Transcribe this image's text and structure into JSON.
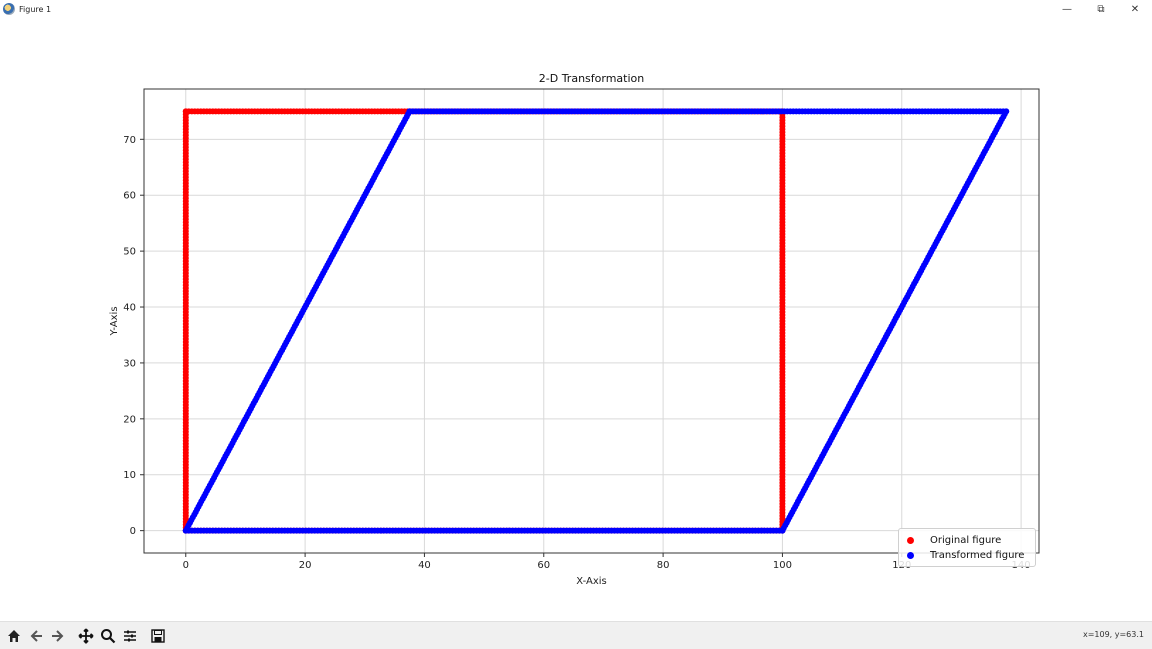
{
  "window": {
    "title": "Figure 1",
    "minimize_glyph": "—",
    "restore_glyph": "⧉",
    "close_glyph": "✕"
  },
  "toolbar": {
    "buttons": [
      {
        "name": "home-icon"
      },
      {
        "name": "back-icon"
      },
      {
        "name": "forward-icon"
      },
      {
        "name": "pan-icon"
      },
      {
        "name": "zoom-icon"
      },
      {
        "name": "subplots-icon"
      },
      {
        "name": "save-icon"
      }
    ],
    "coords_text": "x=109, y=63.1"
  },
  "chart_data": {
    "type": "scatter",
    "title": "2-D Transformation",
    "xlabel": "X-Axis",
    "ylabel": "Y-Axis",
    "xlim": [
      -7,
      143
    ],
    "ylim": [
      -4,
      79
    ],
    "xticks": [
      0,
      20,
      40,
      60,
      80,
      100,
      120,
      140
    ],
    "yticks": [
      0,
      10,
      20,
      30,
      40,
      50,
      60,
      70
    ],
    "grid": true,
    "legend_position": "lower-right",
    "series": [
      {
        "name": "Original figure",
        "color": "#ff0000",
        "outline": [
          [
            0,
            0
          ],
          [
            100,
            0
          ],
          [
            100,
            75
          ],
          [
            0,
            75
          ],
          [
            0,
            0
          ]
        ]
      },
      {
        "name": "Transformed figure",
        "color": "#0000ff",
        "outline": [
          [
            0,
            0
          ],
          [
            100,
            0
          ],
          [
            137.5,
            75
          ],
          [
            37.5,
            75
          ],
          [
            0,
            0
          ]
        ]
      }
    ]
  }
}
